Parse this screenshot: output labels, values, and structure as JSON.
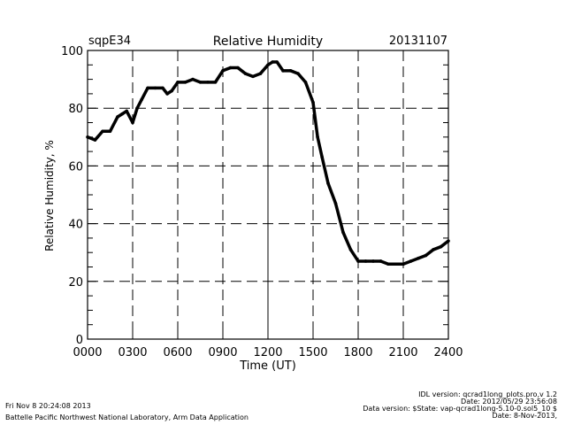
{
  "chart_data": {
    "type": "line",
    "title": "Relative Humidity",
    "site": "sqpE34",
    "date": "20131107",
    "xlabel": "Time (UT)",
    "ylabel": "Relative Humidity, %",
    "xlim": [
      0,
      2400
    ],
    "ylim": [
      0,
      100
    ],
    "x_ticks": [
      "0000",
      "0300",
      "0600",
      "0900",
      "1200",
      "1500",
      "1800",
      "2100",
      "2400"
    ],
    "y_ticks": [
      "0",
      "20",
      "40",
      "60",
      "80",
      "100"
    ],
    "grid": true,
    "x": [
      0,
      50,
      100,
      150,
      200,
      230,
      260,
      300,
      330,
      360,
      400,
      450,
      500,
      530,
      560,
      600,
      650,
      700,
      750,
      800,
      850,
      900,
      950,
      1000,
      1050,
      1100,
      1150,
      1200,
      1230,
      1260,
      1300,
      1350,
      1400,
      1450,
      1500,
      1530,
      1560,
      1600,
      1650,
      1700,
      1750,
      1800,
      1850,
      1900,
      1950,
      2000,
      2050,
      2100,
      2150,
      2200,
      2250,
      2300,
      2350,
      2400
    ],
    "y": [
      70,
      69,
      72,
      72,
      77,
      78,
      79,
      75,
      80,
      83,
      87,
      87,
      87,
      85,
      86,
      89,
      89,
      90,
      89,
      89,
      89,
      93,
      94,
      94,
      92,
      91,
      92,
      95,
      96,
      96,
      93,
      93,
      92,
      89,
      82,
      70,
      63,
      54,
      47,
      37,
      31,
      27,
      27,
      27,
      27,
      26,
      26,
      26,
      27,
      28,
      29,
      31,
      32,
      34
    ]
  },
  "footer": {
    "timestamp": "Fri Nov  8 20:24:08 2013",
    "institution": "Battelle Pacific Northwest National Laboratory, Arm Data Application",
    "idl_version": "IDL version: qcrad1long_plots.pro,v 1.2",
    "idl_date": "Date: 2012/05/29 23:56:08",
    "data_version": "Data version: $State: vap-qcrad1long-5.10-0.sol5_10 $",
    "data_date": "Date: 8-Nov-2013,"
  }
}
